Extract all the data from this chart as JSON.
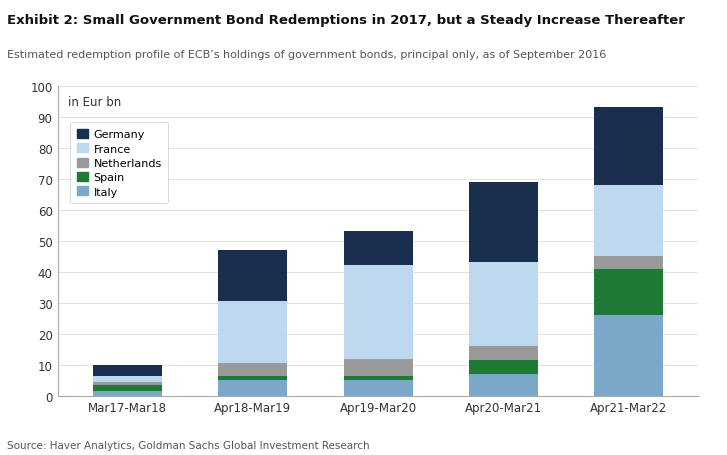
{
  "title": "Exhibit 2: Small Government Bond Redemptions in 2017, but a Steady Increase Thereafter",
  "subtitle": "Estimated redemption profile of ECB’s holdings of government bonds, principal only, as of September 2016",
  "source": "Source: Haver Analytics, Goldman Sachs Global Investment Research",
  "ylabel": "in Eur bn",
  "categories": [
    "Mar17-Mar18",
    "Apr18-Mar19",
    "Apr19-Mar20",
    "Apr20-Mar21",
    "Apr21-Mar22"
  ],
  "series": {
    "Italy": [
      1.5,
      5.0,
      5.0,
      7.0,
      26.0
    ],
    "Spain": [
      2.0,
      1.5,
      1.5,
      4.5,
      15.0
    ],
    "Netherlands": [
      1.0,
      4.0,
      5.5,
      4.5,
      4.0
    ],
    "France": [
      2.0,
      20.0,
      30.0,
      27.0,
      23.0
    ],
    "Germany": [
      3.5,
      16.5,
      11.0,
      26.0,
      25.0
    ]
  },
  "colors": {
    "Italy": "#7ba7c9",
    "Spain": "#1e7a34",
    "Netherlands": "#999999",
    "France": "#bdd7ee",
    "Germany": "#1a2e50"
  },
  "ylim": [
    0,
    100
  ],
  "yticks": [
    0,
    10,
    20,
    30,
    40,
    50,
    60,
    70,
    80,
    90,
    100
  ],
  "legend_order": [
    "Germany",
    "France",
    "Netherlands",
    "Spain",
    "Italy"
  ],
  "background_color": "#ffffff",
  "plot_background": "#ffffff",
  "bar_width": 0.55,
  "figsize": [
    7.27,
    4.56
  ],
  "dpi": 100
}
